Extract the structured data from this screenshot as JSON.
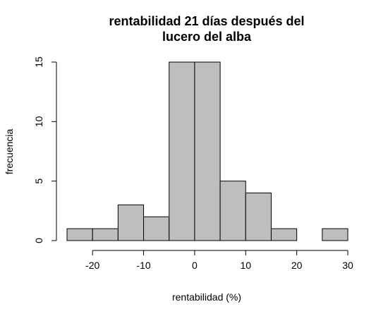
{
  "chart_data": {
    "type": "bar",
    "title_lines": [
      "rentabilidad 21 días después del",
      "lucero del alba"
    ],
    "xlabel": "rentabilidad (%)",
    "ylabel": "frecuencia",
    "bins": [
      {
        "x0": -25,
        "x1": -20,
        "count": 1
      },
      {
        "x0": -20,
        "x1": -15,
        "count": 1
      },
      {
        "x0": -15,
        "x1": -10,
        "count": 3
      },
      {
        "x0": -10,
        "x1": -5,
        "count": 2
      },
      {
        "x0": -5,
        "x1": 0,
        "count": 15
      },
      {
        "x0": 0,
        "x1": 5,
        "count": 15
      },
      {
        "x0": 5,
        "x1": 10,
        "count": 5
      },
      {
        "x0": 10,
        "x1": 15,
        "count": 4
      },
      {
        "x0": 15,
        "x1": 20,
        "count": 1
      },
      {
        "x0": 20,
        "x1": 25,
        "count": 0
      },
      {
        "x0": 25,
        "x1": 30,
        "count": 1
      }
    ],
    "x_ticks": [
      -20,
      -10,
      0,
      10,
      20,
      30
    ],
    "x_tick_labels": [
      "-20",
      "-10",
      "0",
      "10",
      "20",
      "30"
    ],
    "y_ticks": [
      0,
      5,
      10,
      15
    ],
    "y_tick_labels": [
      "0",
      "5",
      "10",
      "15"
    ],
    "xlim": [
      -25,
      30
    ],
    "ylim": [
      0,
      15
    ],
    "grid": false,
    "bar_color": "#bebebe",
    "edge_color": "#000000"
  }
}
